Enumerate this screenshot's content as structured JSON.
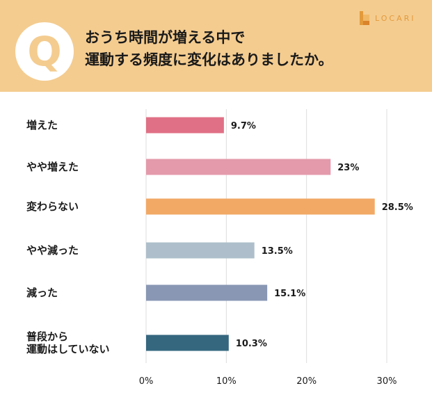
{
  "header": {
    "badge": "Q",
    "question_line1": "おうち時間が増える中で",
    "question_line2": "運動する頻度に変化はありましたか。",
    "brand": "LOCARI",
    "background_color": "#f4cc90"
  },
  "chart_data": {
    "type": "bar",
    "orientation": "horizontal",
    "categories": [
      "増えた",
      "やや増えた",
      "変わらない",
      "やや減った",
      "減った",
      "普段から\n運動はしていない"
    ],
    "values": [
      9.7,
      23,
      28.5,
      13.5,
      15.1,
      10.3
    ],
    "value_labels": [
      "9.7%",
      "23%",
      "28.5%",
      "13.5%",
      "15.1%",
      "10.3%"
    ],
    "colors": [
      "#e07085",
      "#e49aab",
      "#f2a965",
      "#aebfcb",
      "#8997b4",
      "#35677f"
    ],
    "xlim": [
      0,
      30
    ],
    "x_ticks": [
      "0%",
      "10%",
      "20%",
      "30%"
    ],
    "grid": true,
    "title": "",
    "xlabel": "",
    "ylabel": ""
  }
}
